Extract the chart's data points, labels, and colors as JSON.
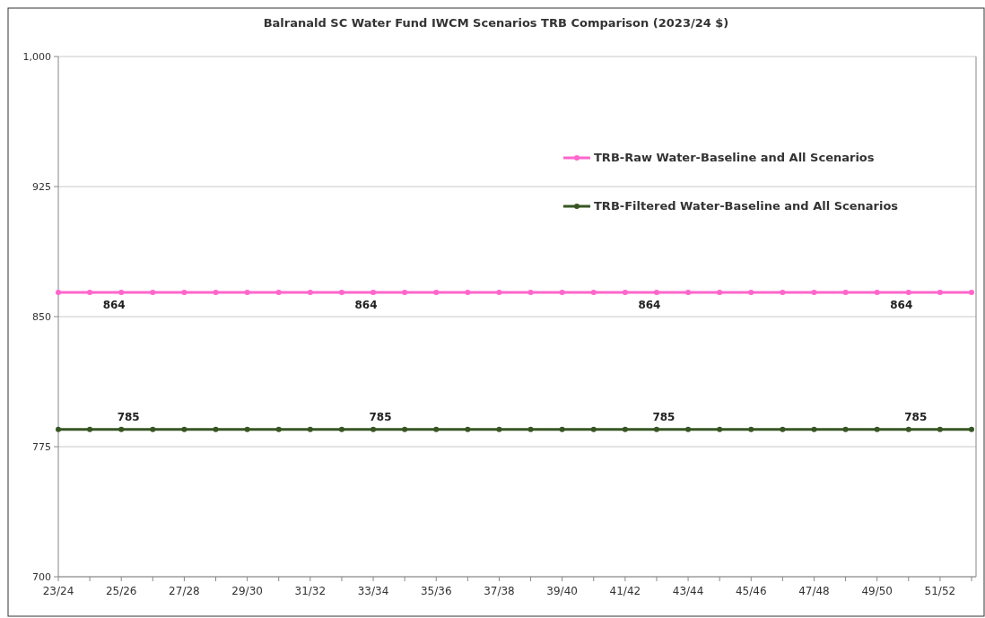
{
  "chart_data": {
    "type": "line",
    "title": "Balranald SC Water Fund IWCM Scenarios TRB Comparison  (2023/24 $)",
    "categories": [
      "23/24",
      null,
      "25/26",
      null,
      "27/28",
      null,
      "29/30",
      null,
      "31/32",
      null,
      "33/34",
      null,
      "35/36",
      null,
      "37/38",
      null,
      "39/40",
      null,
      "41/42",
      null,
      "43/44",
      null,
      "45/46",
      null,
      "47/48",
      null,
      "49/50",
      null,
      "51/52",
      null
    ],
    "series": [
      {
        "name": "TRB-Raw Water-Baseline and All Scenarios",
        "color": "#ff66cc",
        "values": [
          864,
          864,
          864,
          864,
          864,
          864,
          864,
          864,
          864,
          864,
          864,
          864,
          864,
          864,
          864,
          864,
          864,
          864,
          864,
          864,
          864,
          864,
          864,
          864,
          864,
          864,
          864,
          864,
          864,
          864
        ],
        "value_labels": [
          null,
          null,
          "864",
          null,
          null,
          null,
          null,
          null,
          null,
          null,
          "864",
          null,
          null,
          null,
          null,
          null,
          null,
          null,
          null,
          "864",
          null,
          null,
          null,
          null,
          null,
          null,
          null,
          "864",
          null,
          null
        ]
      },
      {
        "name": "TRB-Filtered Water-Baseline and All Scenarios",
        "color": "#375623",
        "values": [
          785,
          785,
          785,
          785,
          785,
          785,
          785,
          785,
          785,
          785,
          785,
          785,
          785,
          785,
          785,
          785,
          785,
          785,
          785,
          785,
          785,
          785,
          785,
          785,
          785,
          785,
          785,
          785,
          785,
          785
        ],
        "value_labels": [
          null,
          null,
          "785",
          null,
          null,
          null,
          null,
          null,
          null,
          null,
          "785",
          null,
          null,
          null,
          null,
          null,
          null,
          null,
          null,
          "785",
          null,
          null,
          null,
          null,
          null,
          null,
          null,
          "785",
          null,
          null
        ]
      }
    ],
    "ylim": [
      700,
      1000
    ],
    "yticks": [
      700,
      775,
      850,
      925,
      {
        "value": 1000,
        "label": "1,000"
      }
    ],
    "grid": "y",
    "legend": "top right",
    "marker": "circle",
    "line_style": "solid"
  }
}
